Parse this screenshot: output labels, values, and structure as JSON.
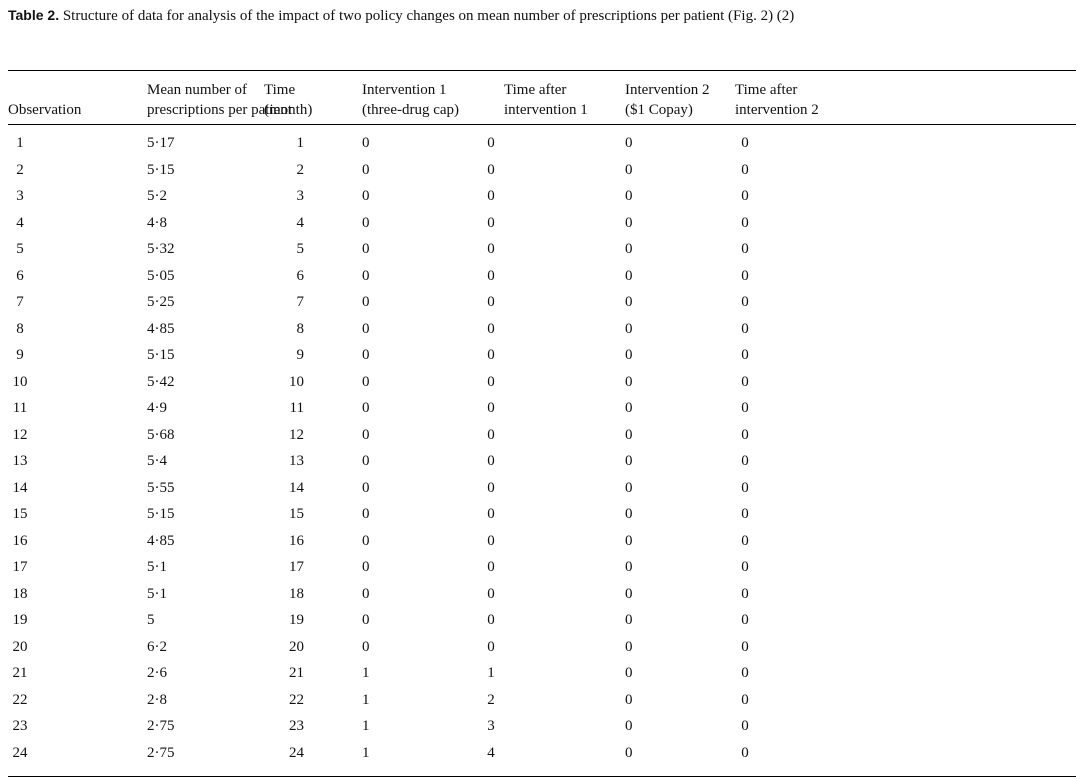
{
  "caption": {
    "label": "Table 2.",
    "text": "Structure of data for analysis of the impact of two policy changes on mean number of prescriptions per patient (Fig. 2) (2)"
  },
  "columns": [
    {
      "line1": "",
      "line2": "Observation"
    },
    {
      "line1": "Mean number of",
      "line2": "prescriptions per patient"
    },
    {
      "line1": "Time",
      "line2": "(month)"
    },
    {
      "line1": "Intervention 1",
      "line2": "(three-drug cap)"
    },
    {
      "line1": "Time after",
      "line2": "intervention 1"
    },
    {
      "line1": "Intervention 2",
      "line2": "($1 Copay)"
    },
    {
      "line1": "Time after",
      "line2": "intervention 2"
    }
  ],
  "rows": [
    [
      "1",
      "5·17",
      "1",
      "0",
      "0",
      "0",
      "0"
    ],
    [
      "2",
      "5·15",
      "2",
      "0",
      "0",
      "0",
      "0"
    ],
    [
      "3",
      "5·2",
      "3",
      "0",
      "0",
      "0",
      "0"
    ],
    [
      "4",
      "4·8",
      "4",
      "0",
      "0",
      "0",
      "0"
    ],
    [
      "5",
      "5·32",
      "5",
      "0",
      "0",
      "0",
      "0"
    ],
    [
      "6",
      "5·05",
      "6",
      "0",
      "0",
      "0",
      "0"
    ],
    [
      "7",
      "5·25",
      "7",
      "0",
      "0",
      "0",
      "0"
    ],
    [
      "8",
      "4·85",
      "8",
      "0",
      "0",
      "0",
      "0"
    ],
    [
      "9",
      "5·15",
      "9",
      "0",
      "0",
      "0",
      "0"
    ],
    [
      "10",
      "5·42",
      "10",
      "0",
      "0",
      "0",
      "0"
    ],
    [
      "11",
      "4·9",
      "11",
      "0",
      "0",
      "0",
      "0"
    ],
    [
      "12",
      "5·68",
      "12",
      "0",
      "0",
      "0",
      "0"
    ],
    [
      "13",
      "5·4",
      "13",
      "0",
      "0",
      "0",
      "0"
    ],
    [
      "14",
      "5·55",
      "14",
      "0",
      "0",
      "0",
      "0"
    ],
    [
      "15",
      "5·15",
      "15",
      "0",
      "0",
      "0",
      "0"
    ],
    [
      "16",
      "4·85",
      "16",
      "0",
      "0",
      "0",
      "0"
    ],
    [
      "17",
      "5·1",
      "17",
      "0",
      "0",
      "0",
      "0"
    ],
    [
      "18",
      "5·1",
      "18",
      "0",
      "0",
      "0",
      "0"
    ],
    [
      "19",
      "5",
      "19",
      "0",
      "0",
      "0",
      "0"
    ],
    [
      "20",
      "6·2",
      "20",
      "0",
      "0",
      "0",
      "0"
    ],
    [
      "21",
      "2·6",
      "21",
      "1",
      "1",
      "0",
      "0"
    ],
    [
      "22",
      "2·8",
      "22",
      "1",
      "2",
      "0",
      "0"
    ],
    [
      "23",
      "2·75",
      "23",
      "1",
      "3",
      "0",
      "0"
    ],
    [
      "24",
      "2·75",
      "24",
      "1",
      "4",
      "0",
      "0"
    ]
  ]
}
